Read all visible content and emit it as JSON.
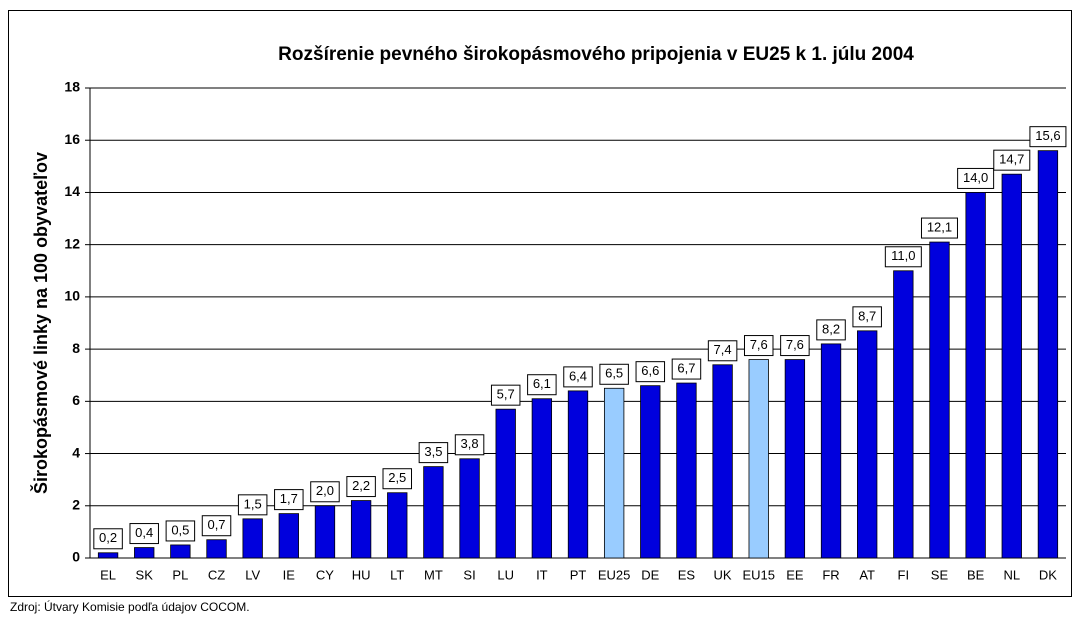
{
  "chart_data": {
    "type": "bar",
    "title": "Rozšírenie pevného širokopásmového pripojenia v EU25 k 1. júlu 2004",
    "y_label": "Širokopásmové linky na 100 obyvateľov",
    "source": "Zdroj: Útvary Komisie podľa údajov COCOM.",
    "categories": [
      "EL",
      "SK",
      "PL",
      "CZ",
      "LV",
      "IE",
      "CY",
      "HU",
      "LT",
      "MT",
      "SI",
      "LU",
      "IT",
      "PT",
      "EU25",
      "DE",
      "ES",
      "UK",
      "EU15",
      "EE",
      "FR",
      "AT",
      "FI",
      "SE",
      "BE",
      "NL",
      "DK"
    ],
    "values": [
      0.2,
      0.4,
      0.5,
      0.7,
      1.5,
      1.7,
      2.0,
      2.2,
      2.5,
      3.5,
      3.8,
      5.7,
      6.1,
      6.4,
      6.5,
      6.6,
      6.7,
      7.4,
      7.6,
      7.6,
      8.2,
      8.7,
      11.0,
      12.1,
      14.0,
      14.7,
      15.6
    ],
    "value_labels": [
      "0,2",
      "0,4",
      "0,5",
      "0,7",
      "1,5",
      "1,7",
      "2,0",
      "2,2",
      "2,5",
      "3,5",
      "3,8",
      "5,7",
      "6,1",
      "6,4",
      "6,5",
      "6,6",
      "6,7",
      "7,4",
      "7,6",
      "7,6",
      "8,2",
      "8,7",
      "11,0",
      "12,1",
      "14,0",
      "14,7",
      "15,6"
    ],
    "colors": [
      "#0000dd",
      "#0000dd",
      "#0000dd",
      "#0000dd",
      "#0000dd",
      "#0000dd",
      "#0000dd",
      "#0000dd",
      "#0000dd",
      "#0000dd",
      "#0000dd",
      "#0000dd",
      "#0000dd",
      "#0000dd",
      "#99ccff",
      "#0000dd",
      "#0000dd",
      "#0000dd",
      "#99ccff",
      "#0000dd",
      "#0000dd",
      "#0000dd",
      "#0000dd",
      "#0000dd",
      "#0000dd",
      "#0000dd",
      "#0000dd"
    ],
    "ylim": [
      0,
      18
    ],
    "yticks": [
      0,
      2,
      4,
      6,
      8,
      10,
      12,
      14,
      16,
      18
    ],
    "grid": true
  }
}
